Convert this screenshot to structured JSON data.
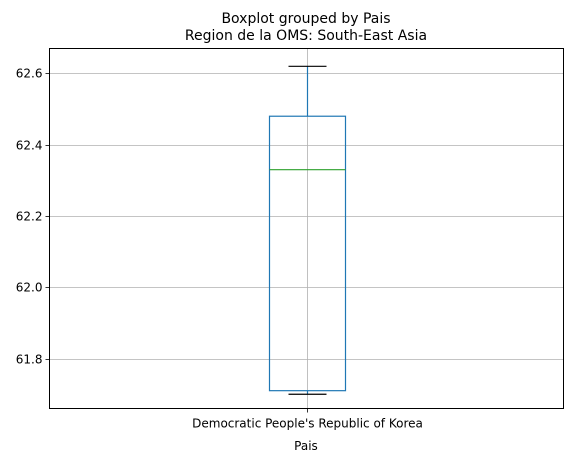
{
  "chart_data": {
    "type": "boxplot",
    "suptitle": "Boxplot grouped by Pais",
    "title": "Region de la OMS: South-East Asia",
    "xlabel": "Pais",
    "ylabel": "",
    "categories": [
      "Democratic People's Republic of Korea"
    ],
    "boxes": [
      {
        "category": "Democratic People's Republic of Korea",
        "whisker_low": 61.7,
        "q1": 61.71,
        "median": 62.33,
        "q3": 62.48,
        "whisker_high": 62.62
      }
    ],
    "ylim": [
      61.66,
      62.67
    ],
    "yticks": [
      61.8,
      62.0,
      62.2,
      62.4,
      62.6
    ],
    "grid": true,
    "colors": {
      "box": "#1f77b4",
      "median": "#2ca02c",
      "whisker": "#1f77b4",
      "cap": "#000000",
      "grid": "#b0b0b0",
      "axis": "#000000"
    }
  }
}
